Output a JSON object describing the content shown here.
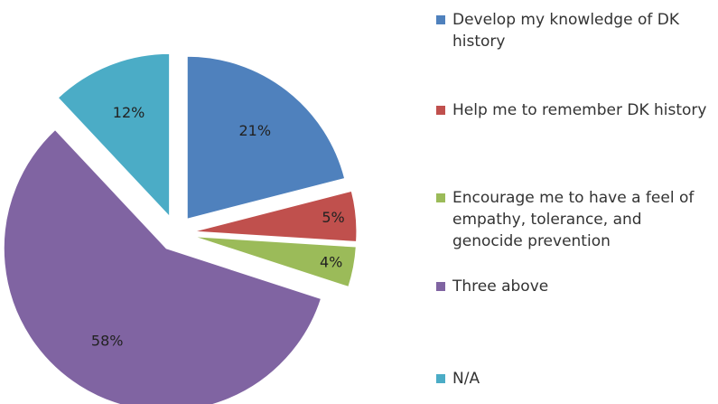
{
  "chart_data": {
    "type": "pie",
    "categories": [
      "Develop my knowledge of DK history",
      "Help me to remember DK history",
      "Encourage me to have a feel of empathy, tolerance, and genocide prevention",
      "Three above",
      "N/A"
    ],
    "values": [
      21,
      5,
      4,
      58,
      12
    ],
    "value_labels": [
      "21%",
      "5%",
      "4%",
      "58%",
      "12%"
    ],
    "colors": [
      "#4f81bd",
      "#c0504d",
      "#9bbb59",
      "#8064a2",
      "#4bacc6"
    ],
    "legend": "right"
  }
}
